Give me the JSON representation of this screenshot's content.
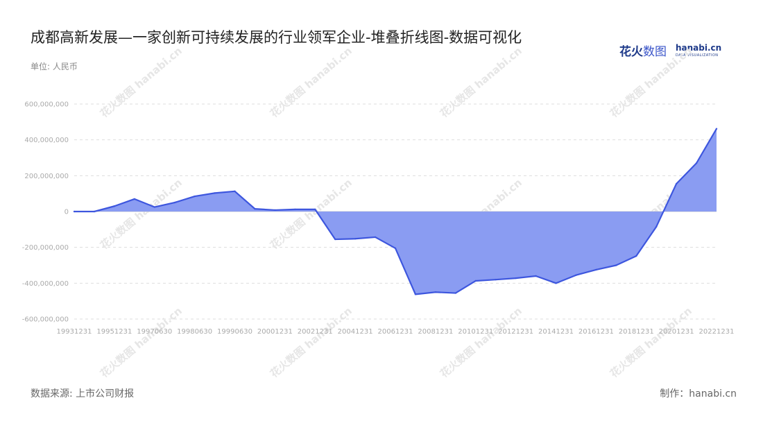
{
  "header": {
    "title": "成都高新发展—一家创新可持续发展的行业领军企业-堆叠折线图-数据可视化",
    "unit": "单位: 人民币"
  },
  "logo": {
    "cn_main": "花火",
    "cn_sub": "数图",
    "en_main": "hanabi.cn",
    "en_sub": "DATA VISUALIZATION"
  },
  "footer": {
    "source": "数据来源: 上市公司财报",
    "maker": "制作：hanabi.cn"
  },
  "watermark": "花火数图 hanabi.cn",
  "colors": {
    "line": "#3d56de",
    "fill": "#8a9cf2",
    "grid": "#dddddd"
  },
  "chart_data": {
    "type": "area",
    "title": "成都高新发展—一家创新可持续发展的行业领军企业-堆叠折线图-数据可视化",
    "ylabel": "单位: 人民币",
    "ylim": [
      -600000000,
      600000000
    ],
    "yticks": [
      -600000000,
      -400000000,
      -200000000,
      0,
      200000000,
      400000000,
      600000000
    ],
    "ytick_labels": [
      "-600,000,000",
      "-400,000,000",
      "-200,000,000",
      "0",
      "200,000,000",
      "400,000,000",
      "600,000,000"
    ],
    "grid": true,
    "x": [
      "19931231",
      "19941231",
      "19951231",
      "19961231",
      "19970630",
      "19971231",
      "19980630",
      "19981231",
      "19990630",
      "19991231",
      "20001231",
      "20011231",
      "20021231",
      "20031231",
      "20041231",
      "20051231",
      "20061231",
      "20071231",
      "20081231",
      "20091231",
      "20101231",
      "20111231",
      "20121231",
      "20131231",
      "20141231",
      "20151231",
      "20161231",
      "20171231",
      "20181231",
      "20191231",
      "20201231",
      "20211231",
      "20221231"
    ],
    "xtick_labels": [
      "19931231",
      "19951231",
      "19970630",
      "19980630",
      "19990630",
      "20001231",
      "20021231",
      "20041231",
      "20061231",
      "20081231",
      "20101231",
      "20121231",
      "20141231",
      "20161231",
      "20181231",
      "20201231",
      "20221231"
    ],
    "series": [
      {
        "values": [
          0,
          0,
          30000000,
          70000000,
          25000000,
          50000000,
          85000000,
          103000000,
          113000000,
          15000000,
          8000000,
          12000000,
          12000000,
          -155000000,
          -152000000,
          -143000000,
          -205000000,
          -462000000,
          -450000000,
          -455000000,
          -387000000,
          -380000000,
          -372000000,
          -360000000,
          -400000000,
          -355000000,
          -325000000,
          -300000000,
          -248000000,
          -85000000,
          155000000,
          270000000,
          462000000
        ]
      }
    ]
  }
}
